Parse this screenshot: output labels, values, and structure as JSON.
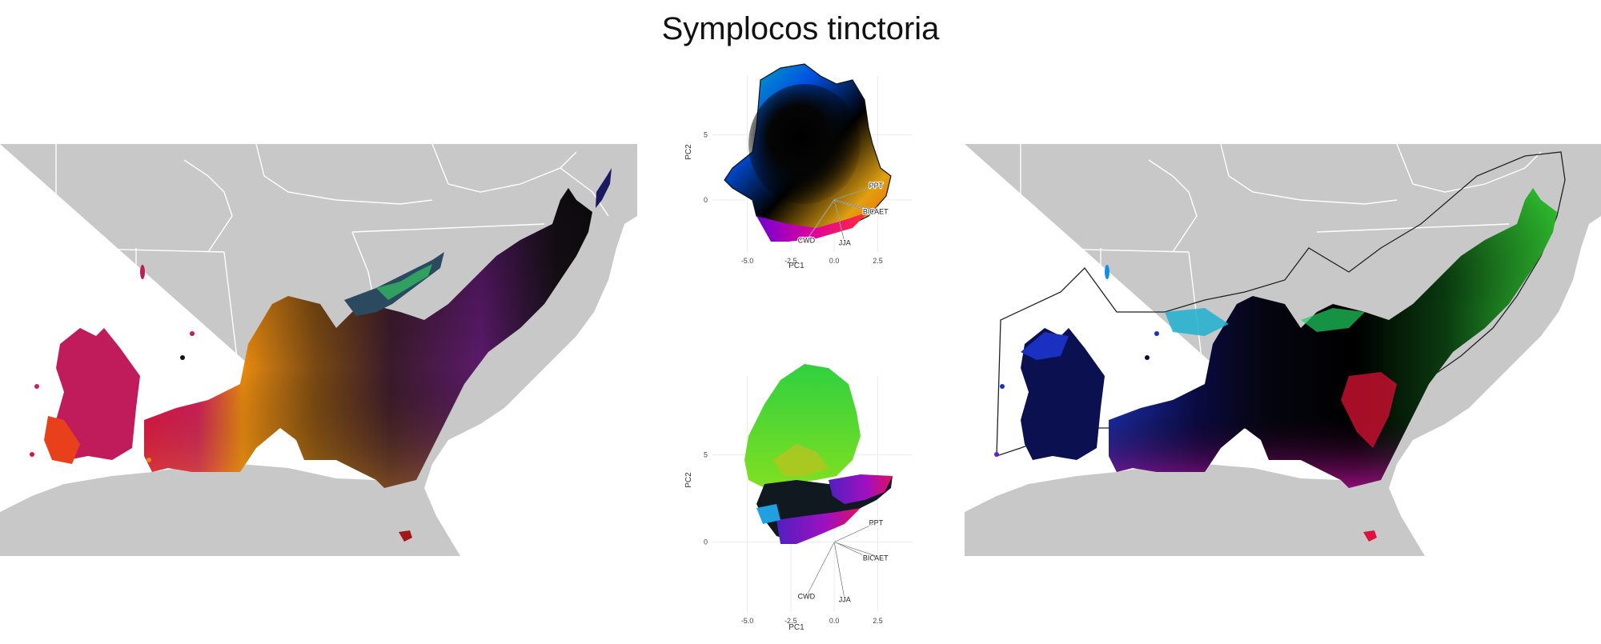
{
  "title": "Symplocos tinctoria",
  "colors": {
    "land": "#c8c8c8",
    "borders": "#ffffff",
    "ocean": "#ffffff",
    "grid": "#ebebeb"
  },
  "pca_plots": [
    {
      "xlabel": "PC1",
      "ylabel": "PC2",
      "x_ticks": [
        "-5.0",
        "-2.5",
        "0.0",
        "2.5"
      ],
      "y_ticks": [
        "5",
        "0"
      ],
      "vectors": [
        "PPT",
        "BIO",
        "AET",
        "JJA",
        "CWD"
      ]
    },
    {
      "xlabel": "PC1",
      "ylabel": "PC2",
      "x_ticks": [
        "-5.0",
        "-2.5",
        "0.0",
        "2.5"
      ],
      "y_ticks": [
        "5",
        "0"
      ],
      "vectors": [
        "PPT",
        "BIO",
        "AET",
        "JJA",
        "CWD"
      ]
    }
  ],
  "chart_data": [
    {
      "type": "scatter",
      "title": "Symplocos tinctoria",
      "xlabel": "PC1",
      "ylabel": "PC2",
      "xlim": [
        -7,
        4.5
      ],
      "ylim": [
        -4,
        9.5
      ],
      "grid": true,
      "loadings": [
        {
          "name": "PPT",
          "x": 2.4,
          "y": 1.1
        },
        {
          "name": "BIO",
          "x": 2.0,
          "y": -0.9
        },
        {
          "name": "AET",
          "x": 2.7,
          "y": -0.9
        },
        {
          "name": "JJA",
          "x": 0.6,
          "y": -3.3
        },
        {
          "name": "CWD",
          "x": -1.6,
          "y": -3.1
        }
      ]
    },
    {
      "type": "scatter",
      "xlabel": "PC1",
      "ylabel": "PC2",
      "xlim": [
        -7,
        4.5
      ],
      "ylim": [
        -4,
        9.5
      ],
      "grid": true,
      "loadings": [
        {
          "name": "PPT",
          "x": 2.4,
          "y": 1.1
        },
        {
          "name": "BIO",
          "x": 2.0,
          "y": -0.9
        },
        {
          "name": "AET",
          "x": 2.7,
          "y": -0.9
        },
        {
          "name": "JJA",
          "x": 0.6,
          "y": -3.3
        },
        {
          "name": "CWD",
          "x": -1.6,
          "y": -3.1
        }
      ]
    }
  ]
}
